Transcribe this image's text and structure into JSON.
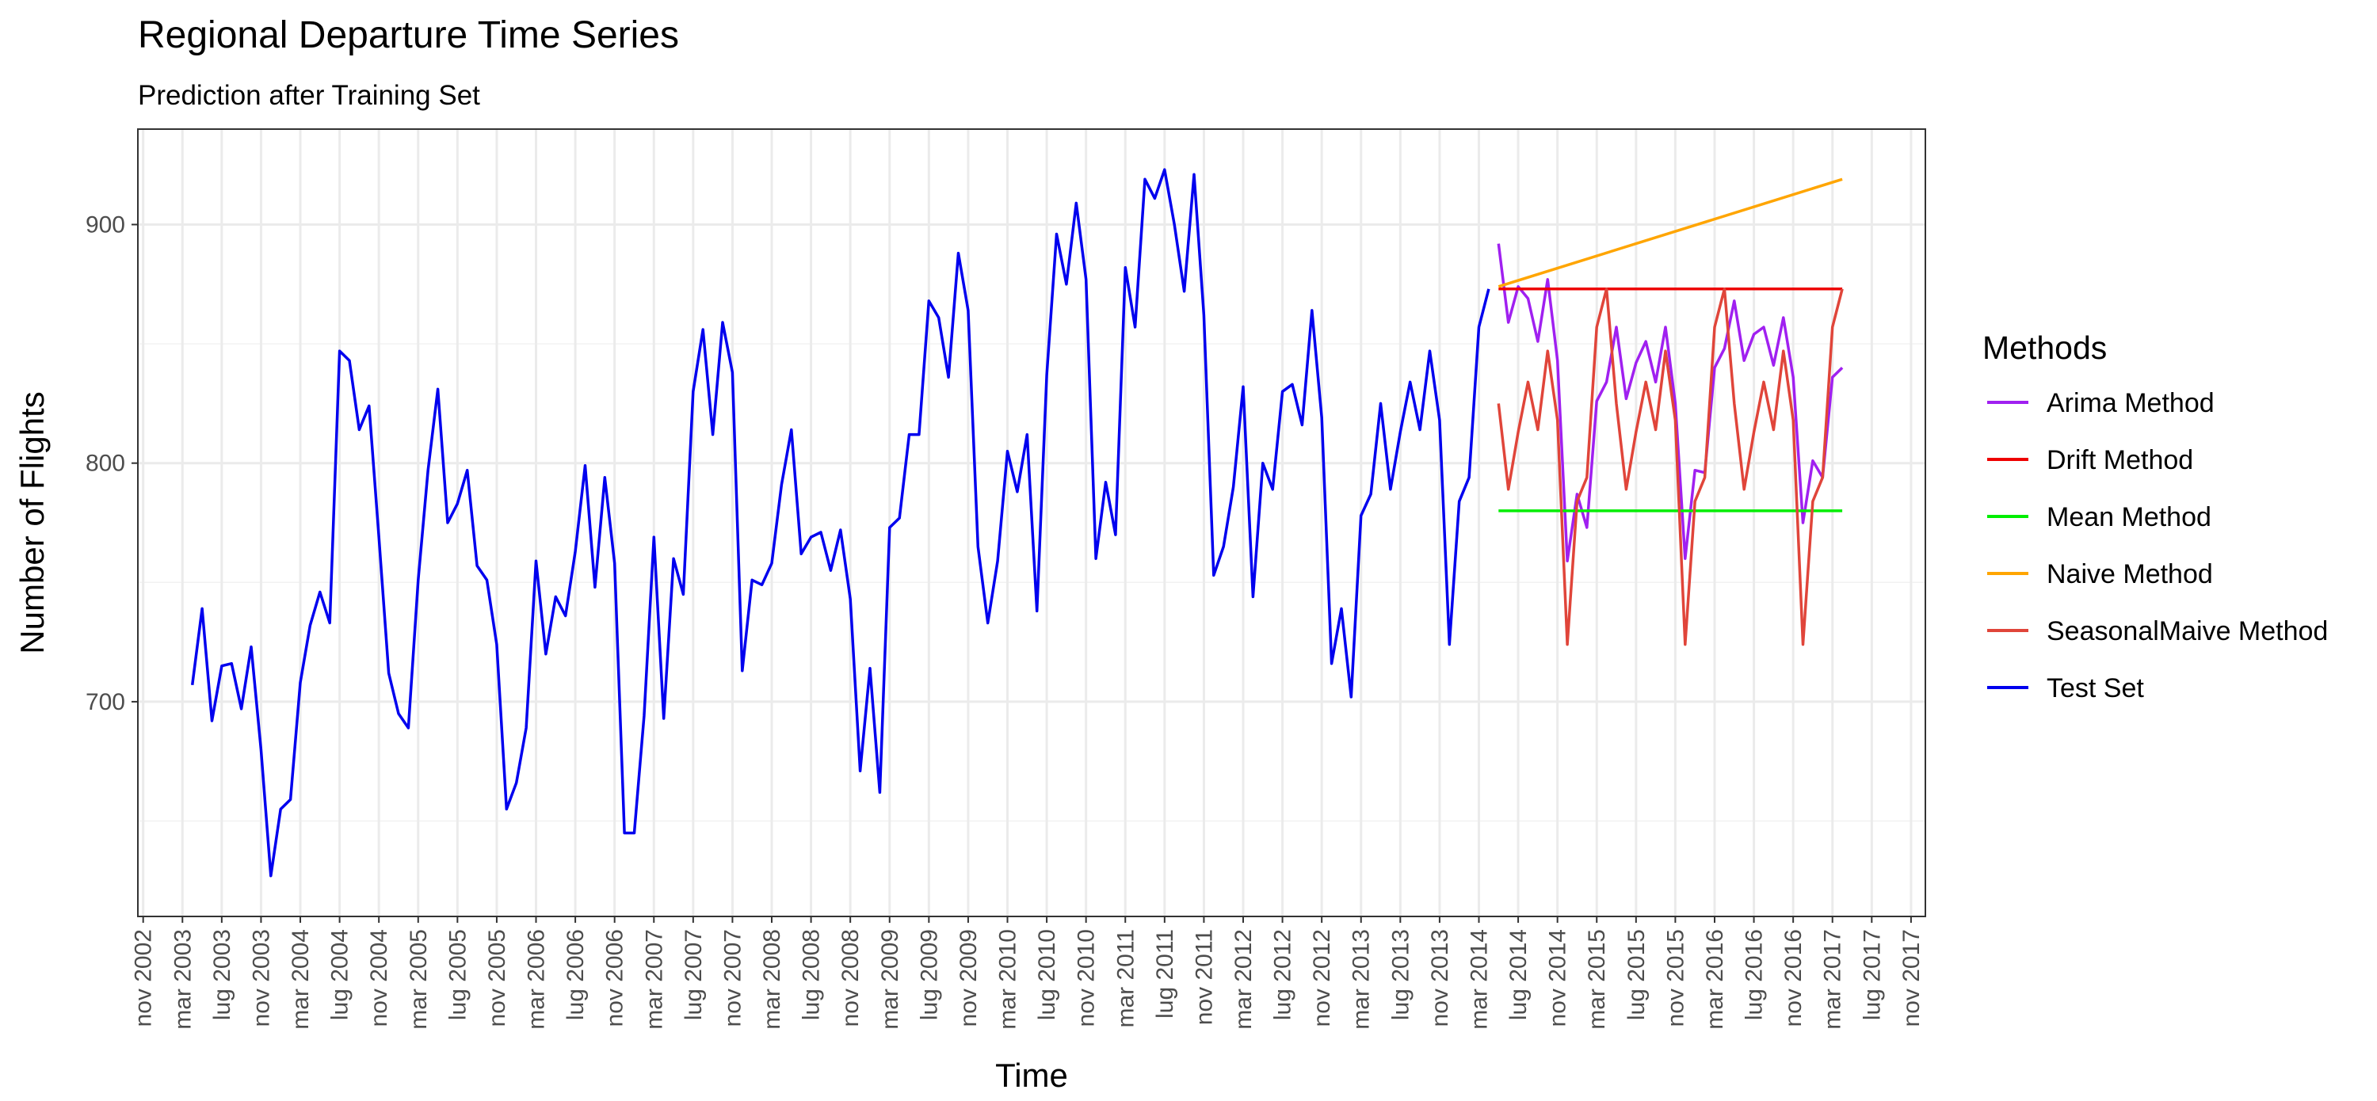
{
  "chart_data": {
    "type": "line",
    "title": "Regional Departure Time Series",
    "subtitle": "Prediction after Training Set",
    "xlabel": "Time",
    "ylabel": "Number of Flights",
    "ylim": [
      610,
      940
    ],
    "xlim": [
      "2002-10-15",
      "2017-12-15"
    ],
    "grid": true,
    "legend_position": "right",
    "legend_title": "Methods",
    "y_ticks": [
      700,
      800,
      900
    ],
    "x_ticks": [
      "2002-11",
      "2003-03",
      "2003-07",
      "2003-11",
      "2004-03",
      "2004-07",
      "2004-11",
      "2005-03",
      "2005-07",
      "2005-11",
      "2006-03",
      "2006-07",
      "2006-11",
      "2007-03",
      "2007-07",
      "2007-11",
      "2008-03",
      "2008-07",
      "2008-11",
      "2009-03",
      "2009-07",
      "2009-11",
      "2010-03",
      "2010-07",
      "2010-11",
      "2011-03",
      "2011-07",
      "2011-11",
      "2012-03",
      "2012-07",
      "2012-11",
      "2013-03",
      "2013-07",
      "2013-11",
      "2014-03",
      "2014-07",
      "2014-11",
      "2015-03",
      "2015-07",
      "2015-11",
      "2016-03",
      "2016-07",
      "2016-11",
      "2017-03",
      "2017-07",
      "2017-11"
    ],
    "x_tick_labels": [
      "nov 2002",
      "mar 2003",
      "lug 2003",
      "nov 2003",
      "mar 2004",
      "lug 2004",
      "nov 2004",
      "mar 2005",
      "lug 2005",
      "nov 2005",
      "mar 2006",
      "lug 2006",
      "nov 2006",
      "mar 2007",
      "lug 2007",
      "nov 2007",
      "mar 2008",
      "lug 2008",
      "nov 2008",
      "mar 2009",
      "lug 2009",
      "nov 2009",
      "mar 2010",
      "lug 2010",
      "nov 2010",
      "mar 2011",
      "lug 2011",
      "nov 2011",
      "mar 2012",
      "lug 2012",
      "nov 2012",
      "mar 2013",
      "lug 2013",
      "nov 2013",
      "mar 2014",
      "lug 2014",
      "nov 2014",
      "mar 2015",
      "lug 2015",
      "nov 2015",
      "mar 2016",
      "lug 2016",
      "nov 2016",
      "mar 2017",
      "lug 2017",
      "nov 2017"
    ],
    "series": [
      {
        "name": "Test Set",
        "color": "#0000ee",
        "x": [
          "2003-04",
          "2003-05",
          "2003-06",
          "2003-07",
          "2003-08",
          "2003-09",
          "2003-10",
          "2003-11",
          "2003-12",
          "2004-01",
          "2004-02",
          "2004-03",
          "2004-04",
          "2004-05",
          "2004-06",
          "2004-07",
          "2004-08",
          "2004-09",
          "2004-10",
          "2004-11",
          "2004-12",
          "2005-01",
          "2005-02",
          "2005-03",
          "2005-04",
          "2005-05",
          "2005-06",
          "2005-07",
          "2005-08",
          "2005-09",
          "2005-10",
          "2005-11",
          "2005-12",
          "2006-01",
          "2006-02",
          "2006-03",
          "2006-04",
          "2006-05",
          "2006-06",
          "2006-07",
          "2006-08",
          "2006-09",
          "2006-10",
          "2006-11",
          "2006-12",
          "2007-01",
          "2007-02",
          "2007-03",
          "2007-04",
          "2007-05",
          "2007-06",
          "2007-07",
          "2007-08",
          "2007-09",
          "2007-10",
          "2007-11",
          "2007-12",
          "2008-01",
          "2008-02",
          "2008-03",
          "2008-04",
          "2008-05",
          "2008-06",
          "2008-07",
          "2008-08",
          "2008-09",
          "2008-10",
          "2008-11",
          "2008-12",
          "2009-01",
          "2009-02",
          "2009-03",
          "2009-04",
          "2009-05",
          "2009-06",
          "2009-07",
          "2009-08",
          "2009-09",
          "2009-10",
          "2009-11",
          "2009-12",
          "2010-01",
          "2010-02",
          "2010-03",
          "2010-04",
          "2010-05",
          "2010-06",
          "2010-07",
          "2010-08",
          "2010-09",
          "2010-10",
          "2010-11",
          "2010-12",
          "2011-01",
          "2011-02",
          "2011-03",
          "2011-04",
          "2011-05",
          "2011-06",
          "2011-07",
          "2011-08",
          "2011-09",
          "2011-10",
          "2011-11",
          "2011-12",
          "2012-01",
          "2012-02",
          "2012-03",
          "2012-04",
          "2012-05",
          "2012-06",
          "2012-07",
          "2012-08",
          "2012-09",
          "2012-10",
          "2012-11",
          "2012-12",
          "2013-01",
          "2013-02",
          "2013-03",
          "2013-04",
          "2013-05",
          "2013-06",
          "2013-07",
          "2013-08",
          "2013-09",
          "2013-10",
          "2013-11",
          "2013-12",
          "2014-01",
          "2014-02",
          "2014-03",
          "2014-04"
        ],
        "values": [
          707,
          739,
          692,
          715,
          716,
          697,
          723,
          680,
          627,
          655,
          659,
          708,
          732,
          746,
          733,
          847,
          843,
          814,
          824,
          769,
          712,
          695,
          689,
          751,
          797,
          831,
          775,
          783,
          797,
          757,
          751,
          724,
          655,
          666,
          689,
          759,
          720,
          744,
          736,
          763,
          799,
          748,
          794,
          758,
          645,
          645,
          694,
          769,
          693,
          760,
          745,
          830,
          856,
          812,
          859,
          838,
          713,
          751,
          749,
          758,
          791,
          814,
          762,
          769,
          771,
          755,
          772,
          743,
          671,
          714,
          662,
          773,
          777,
          812,
          812,
          868,
          861,
          836,
          888,
          864,
          765,
          733,
          759,
          805,
          788,
          812,
          738,
          837,
          896,
          875,
          909,
          877,
          760,
          792,
          770,
          882,
          857,
          919,
          911,
          923,
          900,
          872,
          921,
          862,
          753,
          765,
          790,
          832,
          744,
          800,
          789,
          830,
          833,
          816,
          864,
          819,
          716,
          739,
          702,
          778,
          787,
          825,
          789,
          813,
          834,
          814,
          847,
          818,
          724,
          784,
          794,
          857,
          873
        ]
      },
      {
        "name": "Arima Method",
        "color": "#a020f0",
        "x": [
          "2014-05",
          "2014-06",
          "2014-07",
          "2014-08",
          "2014-09",
          "2014-10",
          "2014-11",
          "2014-12",
          "2015-01",
          "2015-02",
          "2015-03",
          "2015-04",
          "2015-05",
          "2015-06",
          "2015-07",
          "2015-08",
          "2015-09",
          "2015-10",
          "2015-11",
          "2015-12",
          "2016-01",
          "2016-02",
          "2016-03",
          "2016-04",
          "2016-05",
          "2016-06",
          "2016-07",
          "2016-08",
          "2016-09",
          "2016-10",
          "2016-11",
          "2016-12",
          "2017-01",
          "2017-02",
          "2017-03",
          "2017-04"
        ],
        "values": [
          892,
          859,
          874,
          869,
          851,
          877,
          843,
          759,
          787,
          773,
          826,
          834,
          857,
          827,
          842,
          851,
          834,
          857,
          825,
          760,
          797,
          796,
          840,
          848,
          868,
          843,
          854,
          857,
          841,
          861,
          836,
          775,
          801,
          794,
          836,
          840
        ]
      },
      {
        "name": "Drift Method",
        "color": "#ee0000",
        "x": [
          "2014-05",
          "2017-04"
        ],
        "values": [
          873,
          873
        ]
      },
      {
        "name": "Mean Method",
        "color": "#00ee00",
        "x": [
          "2014-05",
          "2017-04"
        ],
        "values": [
          780,
          780
        ]
      },
      {
        "name": "Naive Method",
        "color": "#ffa500",
        "x": [
          "2014-05",
          "2017-04"
        ],
        "values": [
          874,
          919
        ]
      },
      {
        "name": "SeasonalMaive Method",
        "color": "#e0453a",
        "x": [
          "2014-05",
          "2014-06",
          "2014-07",
          "2014-08",
          "2014-09",
          "2014-10",
          "2014-11",
          "2014-12",
          "2015-01",
          "2015-02",
          "2015-03",
          "2015-04",
          "2015-05",
          "2015-06",
          "2015-07",
          "2015-08",
          "2015-09",
          "2015-10",
          "2015-11",
          "2015-12",
          "2016-01",
          "2016-02",
          "2016-03",
          "2016-04",
          "2016-05",
          "2016-06",
          "2016-07",
          "2016-08",
          "2016-09",
          "2016-10",
          "2016-11",
          "2016-12",
          "2017-01",
          "2017-02",
          "2017-03",
          "2017-04"
        ],
        "values": [
          825,
          789,
          813,
          834,
          814,
          847,
          818,
          724,
          784,
          794,
          857,
          873,
          825,
          789,
          813,
          834,
          814,
          847,
          818,
          724,
          784,
          794,
          857,
          873,
          825,
          789,
          813,
          834,
          814,
          847,
          818,
          724,
          784,
          794,
          857,
          873
        ]
      }
    ],
    "legend_order": [
      "Arima Method",
      "Drift Method",
      "Mean Method",
      "Naive Method",
      "SeasonalMaive Method",
      "Test Set"
    ]
  }
}
